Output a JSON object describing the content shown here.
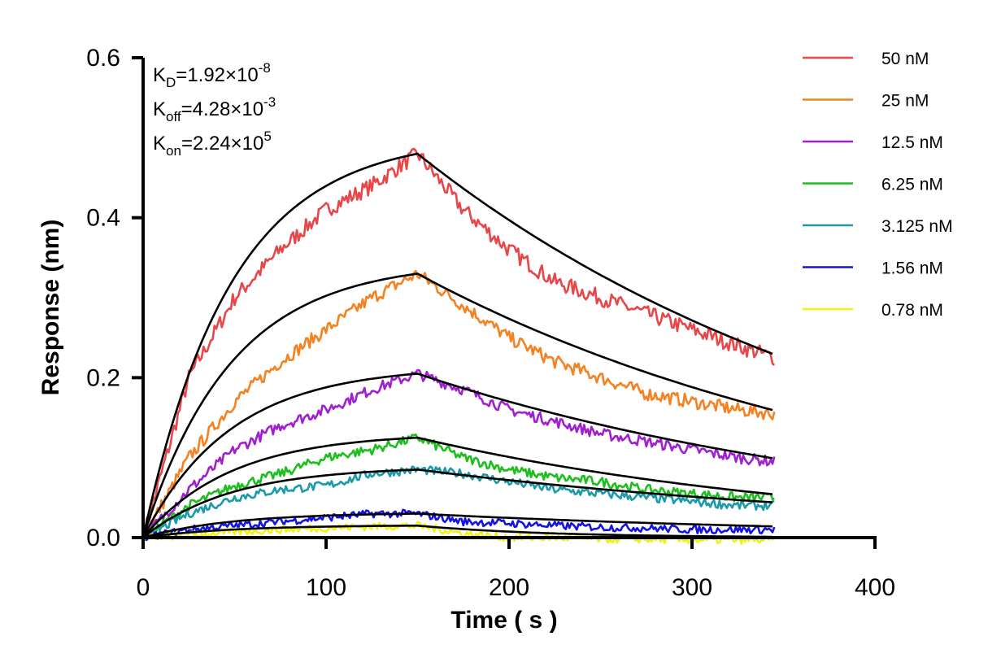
{
  "chart_data": {
    "type": "line",
    "title": "",
    "xlabel": "Time ( s )",
    "ylabel": "Response (nm)",
    "xlim": [
      0,
      400
    ],
    "ylim": [
      0,
      0.6
    ],
    "xticks": [
      0,
      100,
      200,
      300,
      400
    ],
    "yticks": [
      0.0,
      0.2,
      0.4,
      0.6
    ],
    "xtick_labels": [
      "0",
      "100",
      "200",
      "300",
      "400"
    ],
    "ytick_labels": [
      "0.0",
      "0.2",
      "0.4",
      "0.6"
    ],
    "grid": false,
    "legend_position": "right",
    "annotations": {
      "kd": {
        "label": "K",
        "sub": "D",
        "mantissa": "=1.92×10",
        "exp": "-8"
      },
      "koff": {
        "label": "K",
        "sub": "off",
        "mantissa": "=4.28×10",
        "exp": "-3"
      },
      "kon": {
        "label": "K",
        "sub": "on",
        "mantissa": "=2.24×10",
        "exp": "5"
      }
    },
    "phases": {
      "association_end": 150,
      "dissociation_end": 345
    },
    "fit_color": "#000000",
    "series": [
      {
        "name": "50 nM",
        "color": "#E8474A",
        "peak": 0.48,
        "end": 0.225,
        "x": [
          0,
          25,
          50,
          75,
          100,
          125,
          150,
          175,
          200,
          225,
          250,
          275,
          300,
          325,
          345
        ],
        "y": [
          0.0,
          0.2,
          0.3,
          0.36,
          0.41,
          0.44,
          0.48,
          0.41,
          0.36,
          0.32,
          0.3,
          0.28,
          0.26,
          0.24,
          0.225
        ]
      },
      {
        "name": "25 nM",
        "color": "#F58220",
        "peak": 0.33,
        "end": 0.155,
        "x": [
          0,
          25,
          50,
          75,
          100,
          125,
          150,
          175,
          200,
          225,
          250,
          275,
          300,
          325,
          345
        ],
        "y": [
          0.0,
          0.1,
          0.17,
          0.22,
          0.26,
          0.3,
          0.33,
          0.29,
          0.25,
          0.22,
          0.2,
          0.18,
          0.17,
          0.16,
          0.155
        ]
      },
      {
        "name": "12.5 nM",
        "color": "#A020D0",
        "peak": 0.205,
        "end": 0.095,
        "x": [
          0,
          25,
          50,
          75,
          100,
          125,
          150,
          175,
          200,
          225,
          250,
          275,
          300,
          325,
          345
        ],
        "y": [
          0.0,
          0.06,
          0.11,
          0.14,
          0.16,
          0.185,
          0.205,
          0.185,
          0.16,
          0.145,
          0.13,
          0.12,
          0.11,
          0.1,
          0.095
        ]
      },
      {
        "name": "6.25 nM",
        "color": "#1DBE1D",
        "peak": 0.125,
        "end": 0.05,
        "x": [
          0,
          25,
          50,
          75,
          100,
          125,
          150,
          175,
          200,
          225,
          250,
          275,
          300,
          325,
          345
        ],
        "y": [
          0.0,
          0.04,
          0.065,
          0.08,
          0.1,
          0.11,
          0.125,
          0.1,
          0.085,
          0.075,
          0.07,
          0.06,
          0.055,
          0.05,
          0.05
        ]
      },
      {
        "name": "3.125 nM",
        "color": "#1B9AAA",
        "peak": 0.085,
        "end": 0.04,
        "x": [
          0,
          25,
          50,
          75,
          100,
          125,
          150,
          175,
          200,
          225,
          250,
          275,
          300,
          325,
          345
        ],
        "y": [
          0.0,
          0.03,
          0.05,
          0.06,
          0.065,
          0.08,
          0.085,
          0.08,
          0.07,
          0.06,
          0.055,
          0.05,
          0.045,
          0.04,
          0.04
        ]
      },
      {
        "name": "1.56 nM",
        "color": "#1414E0",
        "peak": 0.03,
        "end": 0.01,
        "x": [
          0,
          25,
          50,
          75,
          100,
          125,
          150,
          175,
          200,
          225,
          250,
          275,
          300,
          325,
          345
        ],
        "y": [
          0.0,
          0.01,
          0.015,
          0.02,
          0.025,
          0.03,
          0.03,
          0.02,
          0.018,
          0.015,
          0.013,
          0.012,
          0.01,
          0.01,
          0.01
        ]
      },
      {
        "name": "0.78 nM",
        "color": "#F2F20A",
        "peak": 0.015,
        "end": -0.003,
        "x": [
          0,
          25,
          50,
          75,
          100,
          125,
          150,
          175,
          200,
          225,
          250,
          275,
          300,
          325,
          345
        ],
        "y": [
          0.0,
          0.003,
          0.007,
          0.01,
          0.012,
          0.014,
          0.015,
          0.005,
          0.0,
          0.0,
          -0.002,
          -0.002,
          -0.003,
          -0.003,
          -0.003
        ]
      }
    ]
  }
}
